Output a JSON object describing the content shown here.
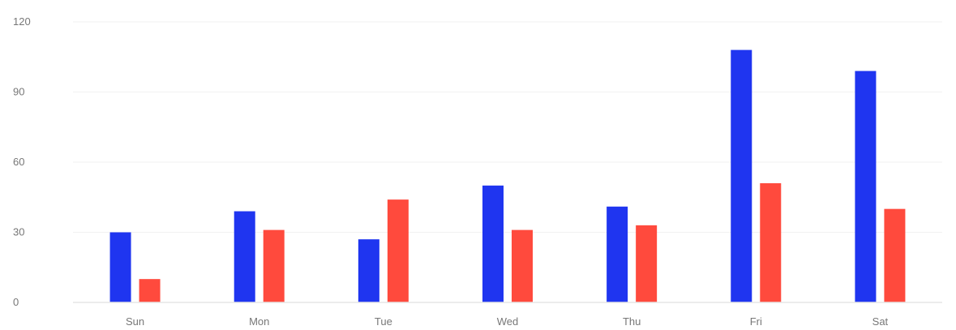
{
  "chart_data": {
    "type": "bar",
    "title": "",
    "xlabel": "",
    "ylabel": "",
    "categories": [
      "Sun",
      "Mon",
      "Tue",
      "Wed",
      "Thu",
      "Fri",
      "Sat"
    ],
    "series": [
      {
        "color": "#1f35f0",
        "values": [
          30,
          39,
          27,
          50,
          41,
          108,
          99
        ]
      },
      {
        "color": "#ff4a3d",
        "values": [
          10,
          31,
          44,
          31,
          33,
          51,
          40
        ]
      }
    ],
    "ylim": [
      0,
      120
    ],
    "yticks": [
      "0",
      "30",
      "60",
      "90",
      "120"
    ],
    "grid": true,
    "legend": "none"
  }
}
